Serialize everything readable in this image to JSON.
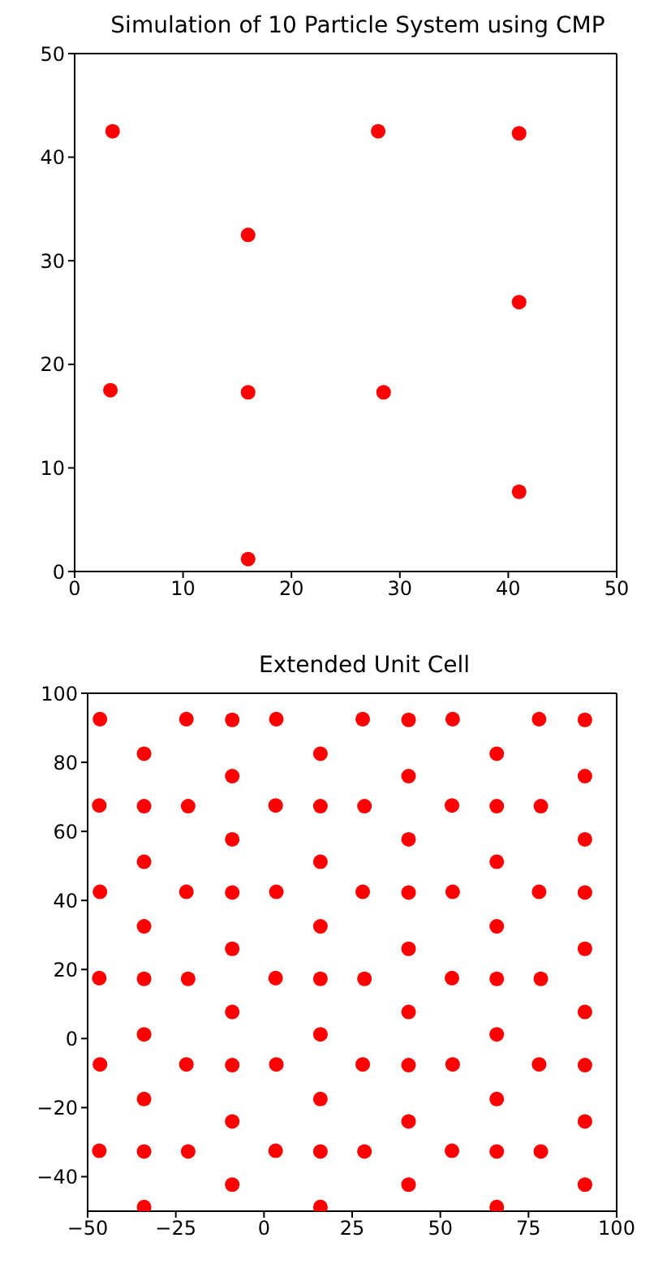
{
  "chart_data": [
    {
      "type": "scatter",
      "title": "Simulation of 10 Particle System using CMP",
      "color": "#ff0000",
      "marker": "circle",
      "x": [
        3.5,
        28,
        41,
        16,
        41,
        3.3,
        16,
        28.5,
        41,
        16
      ],
      "values": [
        42.5,
        42.5,
        42.3,
        32.5,
        26,
        17.5,
        17.3,
        17.3,
        7.7,
        1.2
      ],
      "xlim": [
        0,
        50
      ],
      "ylim": [
        0,
        50
      ],
      "xticks": [
        0,
        10,
        20,
        30,
        40,
        50
      ],
      "yticks": [
        0,
        10,
        20,
        30,
        40,
        50
      ]
    },
    {
      "type": "scatter",
      "title": "Extended Unit Cell",
      "color": "#ff0000",
      "marker": "circle",
      "x": [
        -46.5,
        -22,
        -9,
        -34,
        -9,
        -46.7,
        -34,
        -21.5,
        -9,
        -34,
        3.5,
        28,
        41,
        16,
        41,
        3.3,
        16,
        28.5,
        41,
        16,
        53.5,
        78,
        91,
        66,
        91,
        53.3,
        66,
        78.5,
        91,
        66,
        -46.5,
        -22,
        -9,
        -34,
        -9,
        -46.7,
        -34,
        -21.5,
        -9,
        -34,
        3.5,
        28,
        41,
        16,
        41,
        3.3,
        16,
        28.5,
        41,
        16,
        53.5,
        78,
        91,
        66,
        91,
        53.3,
        66,
        78.5,
        91,
        66,
        -46.5,
        -22,
        -9,
        -34,
        -9,
        -46.7,
        -34,
        -21.5,
        -9,
        -34,
        3.5,
        28,
        41,
        16,
        41,
        3.3,
        16,
        28.5,
        41,
        16,
        53.5,
        78,
        91,
        66,
        91,
        53.3,
        66,
        78.5,
        91,
        66
      ],
      "values": [
        -7.5,
        -7.5,
        -7.7,
        -17.5,
        -24,
        -32.5,
        -32.7,
        -32.7,
        -42.3,
        -48.8,
        -7.5,
        -7.5,
        -7.7,
        -17.5,
        -24,
        -32.5,
        -32.7,
        -32.7,
        -42.3,
        -48.8,
        -7.5,
        -7.5,
        -7.7,
        -17.5,
        -24,
        -32.5,
        -32.7,
        -32.7,
        -42.3,
        -48.8,
        42.5,
        42.5,
        42.3,
        32.5,
        26,
        17.5,
        17.3,
        17.3,
        7.7,
        1.2,
        42.5,
        42.5,
        42.3,
        32.5,
        26,
        17.5,
        17.3,
        17.3,
        7.7,
        1.2,
        42.5,
        42.5,
        42.3,
        32.5,
        26,
        17.5,
        17.3,
        17.3,
        7.7,
        1.2,
        92.5,
        92.5,
        92.3,
        82.5,
        76,
        67.5,
        67.3,
        67.3,
        57.7,
        51.2,
        92.5,
        92.5,
        92.3,
        82.5,
        76,
        67.5,
        67.3,
        67.3,
        57.7,
        51.2,
        92.5,
        92.5,
        92.3,
        82.5,
        76,
        67.5,
        67.3,
        67.3,
        57.7,
        51.2
      ],
      "xlim": [
        -50,
        100
      ],
      "ylim": [
        -50,
        100
      ],
      "xticks": [
        {
          "value": -50,
          "label": "−50"
        },
        {
          "value": -25,
          "label": "−25"
        },
        0,
        25,
        50,
        75,
        100
      ],
      "yticks": [
        {
          "value": -40,
          "label": "−40"
        },
        {
          "value": -20,
          "label": "−20"
        },
        0,
        20,
        40,
        60,
        80,
        100
      ]
    }
  ]
}
